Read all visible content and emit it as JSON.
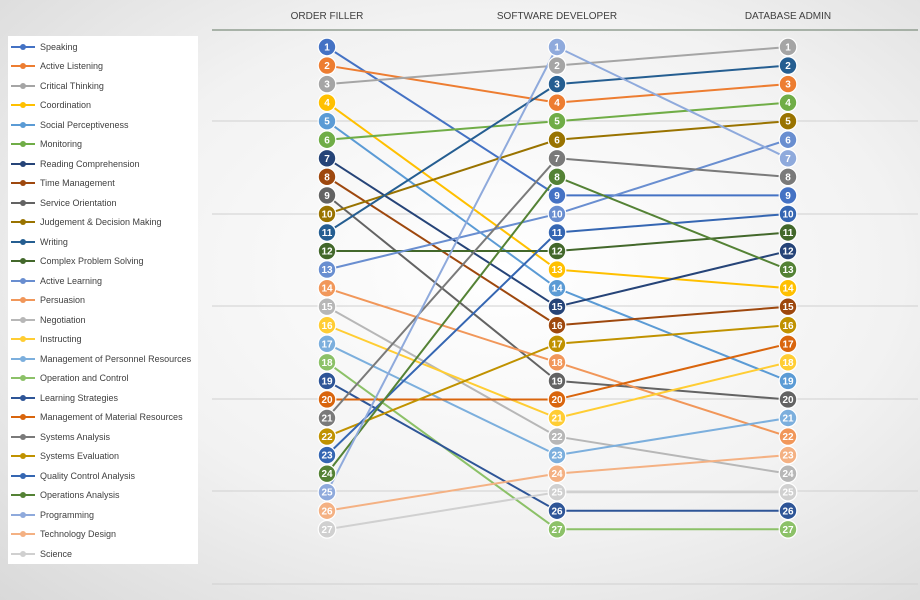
{
  "chart_data": {
    "type": "line",
    "title": "",
    "xlabel": "",
    "ylabel": "",
    "categories": [
      "ORDER FILLER",
      "SOFTWARE DEVELOPER",
      "DATABASE ADMIN"
    ],
    "y_axis": {
      "min": 1,
      "max": 27,
      "reversed": true,
      "grid": true
    },
    "legend": {
      "position": "left"
    },
    "series": [
      {
        "name": "Speaking",
        "color": "#4472C4",
        "values": [
          1,
          9,
          9
        ]
      },
      {
        "name": "Active Listening",
        "color": "#ED7D31",
        "values": [
          2,
          4,
          3
        ]
      },
      {
        "name": "Critical Thinking",
        "color": "#A5A5A5",
        "values": [
          3,
          2,
          1
        ]
      },
      {
        "name": "Coordination",
        "color": "#FFC000",
        "values": [
          4,
          13,
          14
        ]
      },
      {
        "name": "Social Perceptiveness",
        "color": "#5B9BD5",
        "values": [
          5,
          14,
          19
        ]
      },
      {
        "name": "Monitoring",
        "color": "#70AD47",
        "values": [
          6,
          5,
          4
        ]
      },
      {
        "name": "Reading Comprehension",
        "color": "#264478",
        "values": [
          7,
          15,
          12
        ]
      },
      {
        "name": "Time Management",
        "color": "#9E480E",
        "values": [
          8,
          16,
          15
        ]
      },
      {
        "name": "Service Orientation",
        "color": "#636363",
        "values": [
          9,
          19,
          20
        ]
      },
      {
        "name": "Judgement & Decision Making",
        "color": "#997300",
        "values": [
          10,
          6,
          5
        ]
      },
      {
        "name": "Writing",
        "color": "#255E91",
        "values": [
          11,
          3,
          2
        ]
      },
      {
        "name": "Complex Problem Solving",
        "color": "#43682B",
        "values": [
          12,
          12,
          11
        ]
      },
      {
        "name": "Active Learning",
        "color": "#698ED0",
        "values": [
          13,
          10,
          6
        ]
      },
      {
        "name": "Persuasion",
        "color": "#F1975A",
        "values": [
          14,
          18,
          22
        ]
      },
      {
        "name": "Negotiation",
        "color": "#B7B7B7",
        "values": [
          15,
          22,
          24
        ]
      },
      {
        "name": "Instructing",
        "color": "#FFCD33",
        "values": [
          16,
          21,
          18
        ]
      },
      {
        "name": "Management of Personnel Resources",
        "color": "#7CAFDD",
        "values": [
          17,
          23,
          21
        ]
      },
      {
        "name": "Operation and Control",
        "color": "#8CC168",
        "values": [
          18,
          27,
          27
        ]
      },
      {
        "name": "Learning Strategies",
        "color": "#2E5597",
        "values": [
          19,
          26,
          26
        ]
      },
      {
        "name": "Management of Material Resources",
        "color": "#D9650D",
        "values": [
          20,
          20,
          17
        ]
      },
      {
        "name": "Systems Analysis",
        "color": "#7A7A7A",
        "values": [
          21,
          7,
          8
        ]
      },
      {
        "name": "Systems Evaluation",
        "color": "#C09200",
        "values": [
          22,
          17,
          16
        ]
      },
      {
        "name": "Quality Control Analysis",
        "color": "#3566B2",
        "values": [
          23,
          11,
          10
        ]
      },
      {
        "name": "Operations Analysis",
        "color": "#548235",
        "values": [
          24,
          8,
          13
        ]
      },
      {
        "name": "Programming",
        "color": "#8FAADC",
        "values": [
          25,
          1,
          7
        ]
      },
      {
        "name": "Technology Design",
        "color": "#F4B183",
        "values": [
          26,
          24,
          23
        ]
      },
      {
        "name": "Science",
        "color": "#D0D0D0",
        "values": [
          27,
          25,
          25
        ]
      }
    ]
  }
}
